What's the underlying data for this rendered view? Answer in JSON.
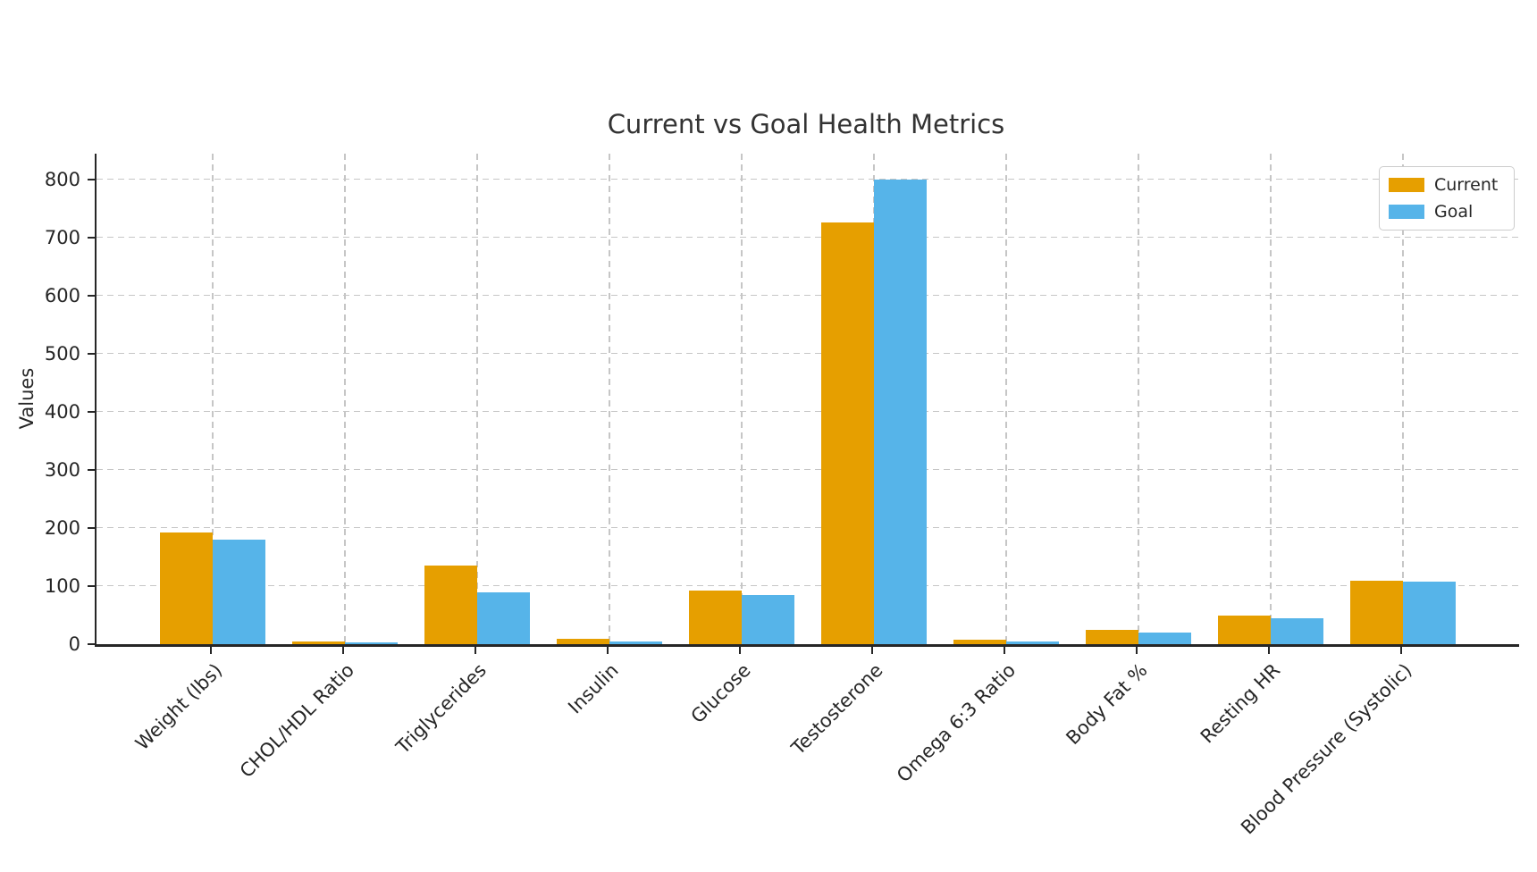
{
  "chart_data": {
    "type": "bar",
    "title": "Current vs Goal Health Metrics",
    "xlabel": "",
    "ylabel": "Values",
    "categories": [
      "Weight (lbs)",
      "CHOL/HDL Ratio",
      "Triglycerides",
      "Insulin",
      "Glucose",
      "Testosterone",
      "Omega 6:3 Ratio",
      "Body Fat %",
      "Resting HR",
      "Blood Pressure (Systolic)"
    ],
    "series": [
      {
        "name": "Current",
        "color": "#E69F00",
        "values": [
          192,
          5,
          135,
          10,
          93,
          727,
          8,
          25,
          50,
          110
        ]
      },
      {
        "name": "Goal",
        "color": "#56B4E9",
        "values": [
          180,
          3.5,
          90,
          4,
          85,
          800,
          4,
          20,
          45,
          108
        ]
      }
    ],
    "ylim": [
      0,
      845
    ],
    "yticks": [
      0,
      100,
      200,
      300,
      400,
      500,
      600,
      700,
      800
    ],
    "grid": "dashed gridlines on both axes",
    "legend_position": "upper right",
    "x_tick_rotation": 45
  },
  "legend": {
    "items": [
      {
        "label": "Current",
        "color": "#E69F00"
      },
      {
        "label": "Goal",
        "color": "#56B4E9"
      }
    ]
  },
  "colors": {
    "current": "#E69F00",
    "goal": "#56B4E9",
    "axis": "#262626",
    "grid": "#c6c6c6",
    "background": "#ffffff"
  }
}
